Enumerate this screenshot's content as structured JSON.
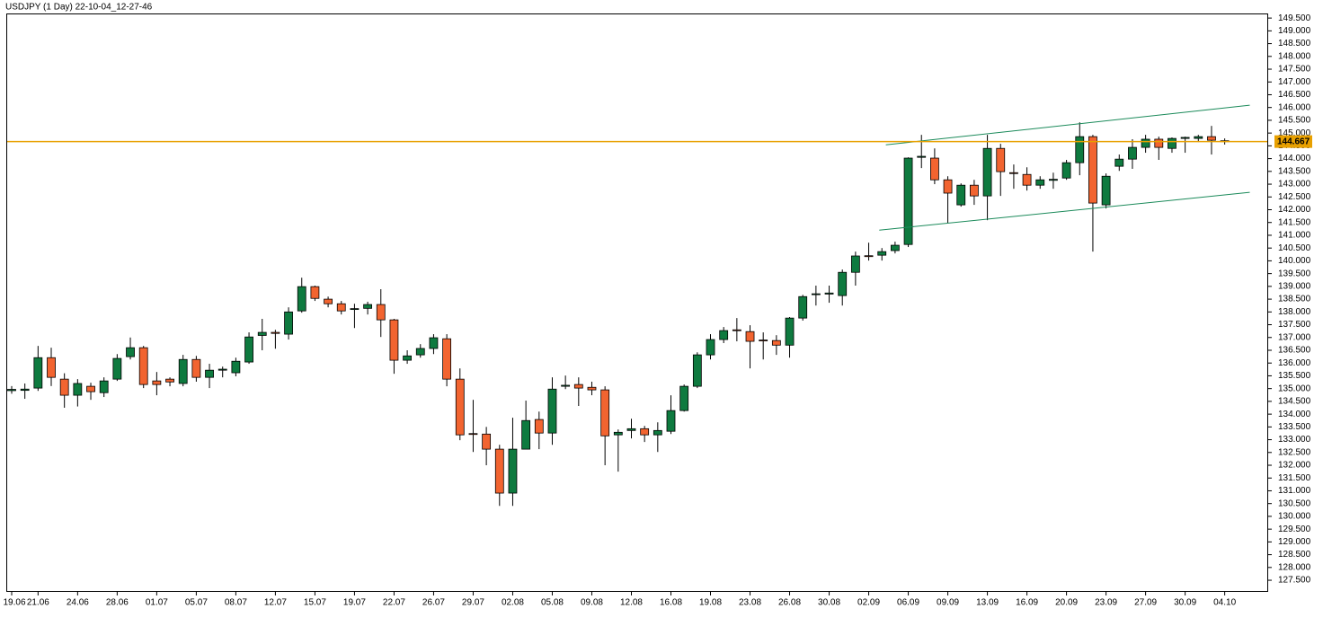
{
  "chart_data": {
    "type": "candlestick",
    "title": "USDJPY (1 Day) 22-10-04_12-27-46",
    "categories": [
      "19.06",
      null,
      "21.06",
      null,
      null,
      "24.06",
      null,
      null,
      "28.06",
      null,
      null,
      "01.07",
      null,
      null,
      "05.07",
      null,
      null,
      "08.07",
      null,
      null,
      "12.07",
      null,
      null,
      "15.07",
      null,
      null,
      "19.07",
      null,
      null,
      "22.07",
      null,
      null,
      "26.07",
      null,
      null,
      "29.07",
      null,
      null,
      "02.08",
      null,
      null,
      "05.08",
      null,
      null,
      "09.08",
      null,
      null,
      "12.08",
      null,
      null,
      "16.08",
      null,
      null,
      "19.08",
      null,
      null,
      "23.08",
      null,
      null,
      "26.08",
      null,
      null,
      "30.08",
      null,
      null,
      "02.09",
      null,
      null,
      "06.09",
      null,
      null,
      "09.09",
      null,
      null,
      "13.09",
      null,
      null,
      "16.09",
      null,
      null,
      "20.09",
      null,
      null,
      "23.09",
      null,
      null,
      "27.09",
      null,
      null,
      "30.09",
      null,
      null,
      "04.10"
    ],
    "open": [
      134.92,
      134.93,
      135.02,
      136.21,
      135.37,
      134.74,
      135.09,
      134.84,
      135.37,
      136.25,
      136.6,
      135.3,
      135.37,
      135.2,
      136.14,
      135.44,
      135.72,
      135.62,
      136.04,
      137.08,
      137.2,
      137.13,
      138.04,
      138.99,
      138.5,
      138.32,
      138.11,
      138.14,
      138.29,
      137.69,
      136.11,
      136.32,
      136.57,
      136.95,
      135.37,
      133.24,
      133.22,
      132.63,
      130.91,
      132.63,
      133.79,
      133.26,
      135.09,
      135.16,
      135.05,
      134.95,
      133.19,
      133.36,
      133.43,
      133.19,
      133.33,
      134.14,
      135.09,
      136.32,
      136.92,
      137.3,
      137.23,
      136.9,
      136.88,
      136.7,
      137.76,
      138.68,
      138.7,
      138.64,
      139.55,
      140.2,
      140.22,
      140.4,
      140.64,
      144.05,
      144.02,
      143.17,
      142.19,
      142.96,
      142.54,
      144.4,
      143.45,
      143.38,
      142.96,
      143.15,
      143.24,
      143.84,
      144.86,
      142.19,
      143.7,
      143.98,
      144.44,
      144.76,
      144.4,
      144.79,
      144.79,
      144.86,
      144.7
    ],
    "high": [
      135.1,
      135.2,
      136.67,
      136.6,
      135.6,
      135.37,
      135.23,
      135.44,
      136.35,
      137.0,
      136.67,
      135.65,
      135.44,
      136.32,
      136.28,
      135.97,
      135.86,
      136.21,
      137.2,
      137.73,
      137.3,
      138.18,
      139.34,
      139.03,
      138.6,
      138.43,
      138.32,
      138.4,
      138.89,
      137.73,
      136.5,
      136.74,
      137.13,
      137.13,
      135.79,
      134.56,
      133.5,
      132.8,
      133.86,
      134.53,
      134.1,
      135.44,
      135.51,
      135.44,
      135.27,
      135.09,
      133.4,
      133.82,
      133.54,
      133.68,
      134.74,
      135.16,
      136.42,
      137.13,
      137.41,
      137.76,
      137.48,
      137.2,
      137.09,
      137.8,
      138.67,
      139.03,
      139.03,
      139.66,
      140.36,
      140.71,
      140.5,
      140.75,
      144.05,
      144.93,
      144.4,
      143.31,
      143.03,
      143.17,
      144.93,
      144.58,
      143.77,
      143.66,
      143.31,
      143.45,
      143.95,
      145.42,
      144.93,
      143.42,
      144.16,
      144.76,
      144.93,
      144.86,
      144.83,
      144.86,
      144.93,
      145.28,
      144.79
    ],
    "low": [
      134.8,
      134.6,
      134.91,
      135.1,
      134.25,
      134.3,
      134.56,
      134.67,
      135.3,
      136.14,
      135.02,
      134.74,
      135.09,
      135.09,
      135.27,
      135.02,
      135.44,
      135.48,
      135.97,
      136.5,
      136.56,
      136.92,
      137.97,
      138.43,
      138.18,
      137.9,
      137.37,
      137.9,
      137.02,
      135.58,
      135.97,
      136.21,
      136.35,
      135.09,
      132.98,
      132.52,
      132.0,
      130.41,
      130.41,
      132.63,
      132.63,
      132.8,
      134.98,
      134.32,
      134.74,
      132.0,
      131.75,
      133.05,
      132.91,
      132.52,
      133.22,
      134.1,
      135.02,
      136.14,
      136.78,
      136.85,
      135.79,
      136.14,
      136.32,
      136.21,
      137.66,
      138.25,
      138.36,
      138.25,
      139.03,
      140.01,
      140.01,
      140.29,
      140.54,
      143.63,
      143.0,
      141.49,
      142.12,
      142.19,
      141.59,
      142.54,
      142.82,
      142.75,
      142.82,
      142.82,
      143.17,
      143.35,
      140.36,
      142.05,
      143.52,
      143.6,
      144.23,
      143.95,
      144.23,
      144.23,
      144.65,
      144.16,
      144.55
    ],
    "close": [
      134.97,
      134.98,
      136.21,
      135.44,
      134.74,
      135.2,
      134.88,
      135.3,
      136.18,
      136.6,
      135.16,
      135.16,
      135.26,
      136.14,
      135.44,
      135.72,
      135.76,
      136.07,
      137.02,
      137.2,
      137.16,
      138.0,
      138.99,
      138.53,
      138.32,
      138.04,
      138.13,
      138.29,
      137.69,
      136.11,
      136.28,
      136.57,
      136.99,
      135.37,
      133.19,
      133.22,
      132.63,
      130.91,
      132.63,
      133.75,
      133.26,
      134.98,
      135.13,
      135.02,
      134.95,
      133.15,
      133.29,
      133.43,
      133.19,
      133.36,
      134.14,
      135.09,
      136.32,
      136.92,
      137.27,
      137.27,
      136.85,
      136.88,
      136.7,
      137.76,
      138.6,
      138.71,
      138.74,
      139.55,
      140.19,
      140.19,
      140.36,
      140.61,
      144.02,
      144.09,
      143.17,
      142.65,
      142.96,
      142.54,
      144.4,
      143.49,
      143.42,
      142.96,
      143.17,
      143.19,
      143.84,
      144.86,
      142.26,
      143.31,
      143.98,
      144.44,
      144.76,
      144.44,
      144.79,
      144.83,
      144.86,
      144.72,
      144.67
    ],
    "up_color": "#0e7a3f",
    "down_color": "#f26430",
    "price_line": {
      "value": 144.667,
      "color": "#e8a000"
    },
    "channel": {
      "color": "#1b8a5a",
      "lines": [
        {
          "x": [
            66.3,
            93.9
          ],
          "y": [
            144.54,
            146.09
          ]
        },
        {
          "x": [
            65.8,
            93.9
          ],
          "y": [
            141.2,
            142.68
          ]
        }
      ]
    },
    "ylim": [
      127.08,
      149.68
    ],
    "yticks": [
      {
        "value": 127.5,
        "label": "127.500"
      },
      {
        "value": 128,
        "label": "128.000"
      },
      {
        "value": 128.5,
        "label": "128.500"
      },
      {
        "value": 129,
        "label": "129.000"
      },
      {
        "value": 129.5,
        "label": "129.500"
      },
      {
        "value": 130,
        "label": "130.000"
      },
      {
        "value": 130.5,
        "label": "130.500"
      },
      {
        "value": 131,
        "label": "131.000"
      },
      {
        "value": 131.5,
        "label": "131.500"
      },
      {
        "value": 132,
        "label": "132.000"
      },
      {
        "value": 132.5,
        "label": "132.500"
      },
      {
        "value": 133,
        "label": "133.000"
      },
      {
        "value": 133.5,
        "label": "133.500"
      },
      {
        "value": 134,
        "label": "134.000"
      },
      {
        "value": 134.5,
        "label": "134.500"
      },
      {
        "value": 135,
        "label": "135.000"
      },
      {
        "value": 135.5,
        "label": "135.500"
      },
      {
        "value": 136,
        "label": "136.000"
      },
      {
        "value": 136.5,
        "label": "136.500"
      },
      {
        "value": 137,
        "label": "137.000"
      },
      {
        "value": 137.5,
        "label": "137.500"
      },
      {
        "value": 138,
        "label": "138.000"
      },
      {
        "value": 138.5,
        "label": "138.500"
      },
      {
        "value": 139,
        "label": "139.000"
      },
      {
        "value": 139.5,
        "label": "139.500"
      },
      {
        "value": 140,
        "label": "140.000"
      },
      {
        "value": 140.5,
        "label": "140.500"
      },
      {
        "value": 141,
        "label": "141.000"
      },
      {
        "value": 141.5,
        "label": "141.500"
      },
      {
        "value": 142,
        "label": "142.000"
      },
      {
        "value": 142.5,
        "label": "142.500"
      },
      {
        "value": 143,
        "label": "143.000"
      },
      {
        "value": 143.5,
        "label": "143.500"
      },
      {
        "value": 144,
        "label": "144.000"
      },
      {
        "value": 144.5,
        "label": "144.500"
      },
      {
        "value": 145,
        "label": "145.000"
      },
      {
        "value": 145.5,
        "label": "145.500"
      },
      {
        "value": 146,
        "label": "146.000"
      },
      {
        "value": 146.5,
        "label": "146.500"
      },
      {
        "value": 147,
        "label": "147.000"
      },
      {
        "value": 147.5,
        "label": "147.500"
      },
      {
        "value": 148,
        "label": "148.000"
      },
      {
        "value": 148.5,
        "label": "148.500"
      },
      {
        "value": 149,
        "label": "149.000"
      },
      {
        "value": 149.5,
        "label": "149.500"
      }
    ],
    "grid": false
  }
}
